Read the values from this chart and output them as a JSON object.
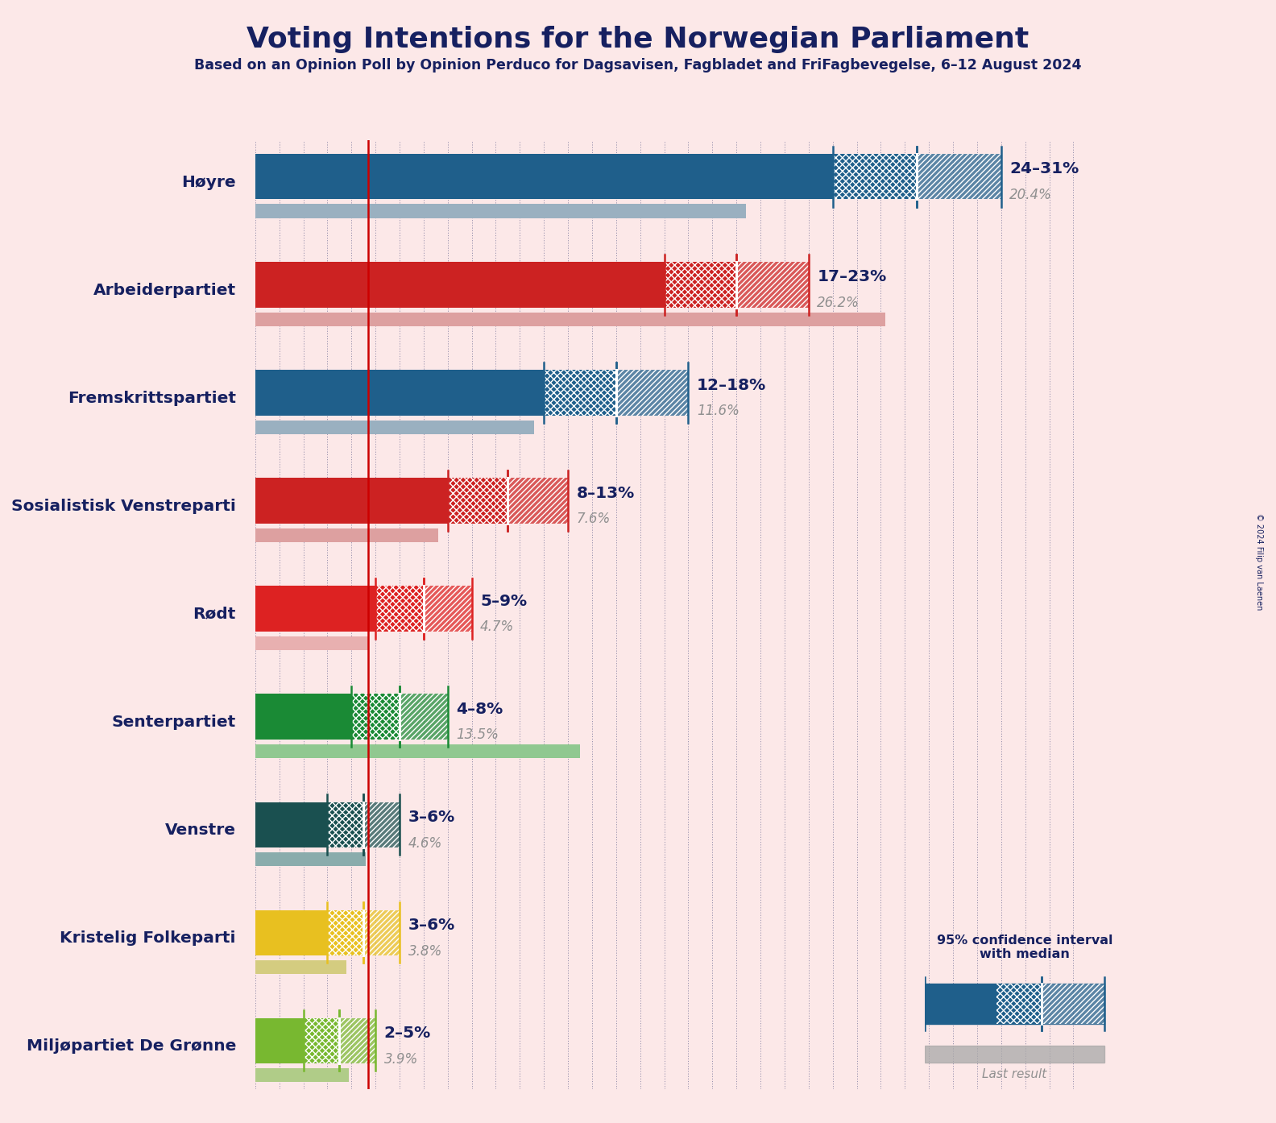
{
  "title": "Voting Intentions for the Norwegian Parliament",
  "subtitle": "Based on an Opinion Poll by Opinion Perduco for Dagsavisen, Fagbladet and FriFagbevegelse, 6–12 August 2024",
  "copyright": "© 2024 Filip van Laenen",
  "background_color": "#fce8e8",
  "parties": [
    {
      "name": "Høyre",
      "ci_low": 24,
      "ci_high": 31,
      "median": 27.5,
      "last_result": 20.4,
      "color": "#1f5f8b",
      "last_color": "#9ab0c0",
      "label_range": "24–31%",
      "label_last": "20.4%"
    },
    {
      "name": "Arbeiderpartiet",
      "ci_low": 17,
      "ci_high": 23,
      "median": 20,
      "last_result": 26.2,
      "color": "#cc2222",
      "last_color": "#dda0a0",
      "label_range": "17–23%",
      "label_last": "26.2%"
    },
    {
      "name": "Fremskrittspartiet",
      "ci_low": 12,
      "ci_high": 18,
      "median": 15,
      "last_result": 11.6,
      "color": "#1f5f8b",
      "last_color": "#9ab0c0",
      "label_range": "12–18%",
      "label_last": "11.6%"
    },
    {
      "name": "Sosialistisk Venstreparti",
      "ci_low": 8,
      "ci_high": 13,
      "median": 10.5,
      "last_result": 7.6,
      "color": "#cc2222",
      "last_color": "#dda0a0",
      "label_range": "8–13%",
      "label_last": "7.6%"
    },
    {
      "name": "Rødt",
      "ci_low": 5,
      "ci_high": 9,
      "median": 7,
      "last_result": 4.7,
      "color": "#dd2222",
      "last_color": "#e8b0b0",
      "label_range": "5–9%",
      "label_last": "4.7%"
    },
    {
      "name": "Senterpartiet",
      "ci_low": 4,
      "ci_high": 8,
      "median": 6,
      "last_result": 13.5,
      "color": "#1a8a35",
      "last_color": "#90c890",
      "label_range": "4–8%",
      "label_last": "13.5%"
    },
    {
      "name": "Venstre",
      "ci_low": 3,
      "ci_high": 6,
      "median": 4.5,
      "last_result": 4.6,
      "color": "#1a5050",
      "last_color": "#8aacac",
      "label_range": "3–6%",
      "label_last": "4.6%"
    },
    {
      "name": "Kristelig Folkeparti",
      "ci_low": 3,
      "ci_high": 6,
      "median": 4.5,
      "last_result": 3.8,
      "color": "#e8c020",
      "last_color": "#d4cc80",
      "label_range": "3–6%",
      "label_last": "3.8%"
    },
    {
      "name": "Miljøpartiet De Grønne",
      "ci_low": 2,
      "ci_high": 5,
      "median": 3.5,
      "last_result": 3.9,
      "color": "#78b830",
      "last_color": "#b0cc88",
      "label_range": "2–5%",
      "label_last": "3.9%"
    }
  ],
  "xmax": 35,
  "red_line_x": 4.7,
  "title_color": "#162060",
  "subtitle_color": "#162060",
  "label_color": "#162060",
  "last_result_text_color": "#909090",
  "legend_text": "95% confidence interval\nwith median",
  "legend_last": "Last result",
  "legend_bar_color": "#1f5f8b",
  "legend_last_color": "#a8a8a8"
}
